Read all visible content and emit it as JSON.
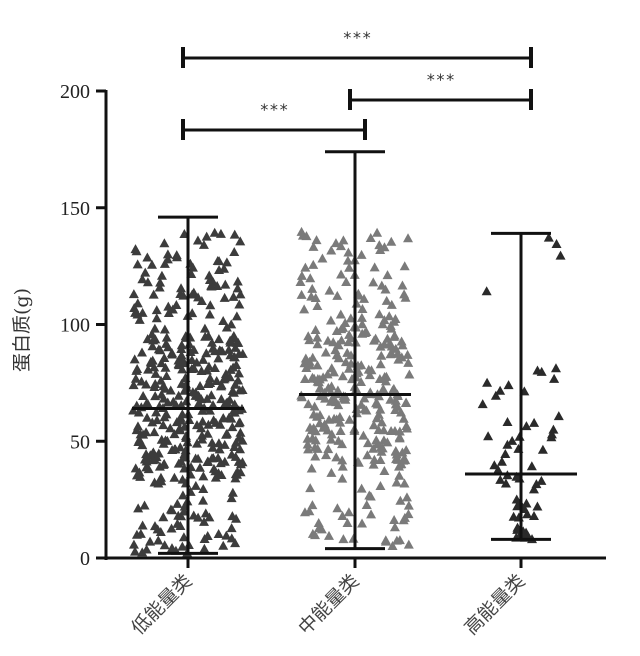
{
  "chart_data": {
    "type": "scatter",
    "subtype": "dot plot with median and range (min–max) bars",
    "ylabel": "蛋白质(g)",
    "xlabel": "",
    "ylim": [
      0,
      200
    ],
    "yticks": [
      0,
      50,
      100,
      150,
      200
    ],
    "grid": false,
    "categories": [
      "低能量类",
      "中能量类",
      "高能量类"
    ],
    "series": [
      {
        "category": "低能量类",
        "median": 64,
        "min": 2,
        "max": 146,
        "color": "#3c3c3c",
        "marker": "triangle"
      },
      {
        "category": "中能量类",
        "median": 70,
        "min": 4,
        "max": 174,
        "color": "#7a7a7a",
        "marker": "triangle"
      },
      {
        "category": "高能量类",
        "median": 36,
        "min": 8,
        "max": 139,
        "color": "#2a2a2a",
        "marker": "triangle"
      }
    ],
    "annotations": [
      {
        "from": "低能量类",
        "to": "中能量类",
        "label": "***"
      },
      {
        "from": "中能量类",
        "to": "高能量类",
        "label": "***"
      },
      {
        "from": "低能量类",
        "to": "高能量类",
        "label": "***"
      }
    ]
  }
}
